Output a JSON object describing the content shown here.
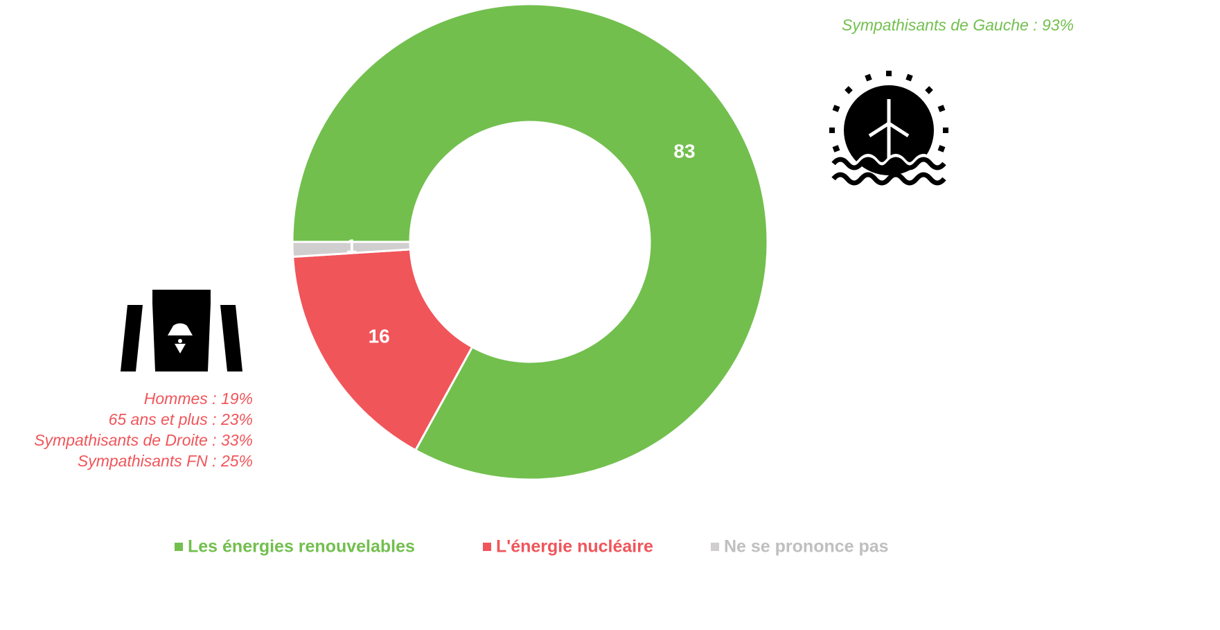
{
  "chart_data": {
    "type": "donut",
    "categories": [
      "Les énergies renouvelables",
      "L'énergie nucléaire",
      "Ne se prononce pas"
    ],
    "values": [
      83,
      16,
      1
    ],
    "colors": [
      "#72bf4e",
      "#f0555a",
      "#d0cece"
    ],
    "annotation_right": [
      "Sympathisants de Gauche  : 93%"
    ],
    "annotation_left": [
      "Hommes : 19%",
      "65 ans et plus : 23%",
      "Sympathisants de Droite : 33%",
      "Sympathisants FN : 25%"
    ]
  }
}
